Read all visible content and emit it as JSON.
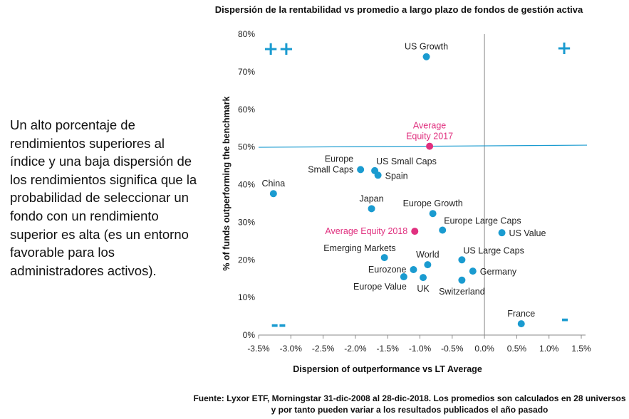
{
  "chart_data": {
    "type": "scatter",
    "title": "Dispersión de la rentabilidad vs promedio a largo plazo de fondos de gestión activa",
    "xlabel": "Dispersion of outperformance vs LT Average",
    "ylabel": "% of funds outperforming the benchmark",
    "xlim": [
      -3.5,
      1.5
    ],
    "ylim": [
      0,
      80
    ],
    "x_ticks": [
      -3.5,
      -3.0,
      -2.5,
      -2.0,
      -1.5,
      -1.0,
      -0.5,
      0.0,
      0.5,
      1.0,
      1.5
    ],
    "x_tick_labels": [
      "-3.5%",
      "-3.0%",
      "-2.5%",
      "-2.0%",
      "-1.5%",
      "-1.0%",
      "-0.5%",
      "0.0%",
      "0.5%",
      "1.0%",
      "1.5%"
    ],
    "y_ticks": [
      0,
      10,
      20,
      30,
      40,
      50,
      60,
      70,
      80
    ],
    "y_tick_labels": [
      "0%",
      "10%",
      "20%",
      "30%",
      "40%",
      "50%",
      "60%",
      "70%",
      "80%"
    ],
    "reference_line": {
      "label": "Average Equity 2017",
      "y": 50.2
    },
    "vertical_line_x": 0.0,
    "colors": {
      "points": "#1a9bd0",
      "highlight": "#e0307f",
      "lines": "#1a9bd0",
      "axis": "#888888"
    },
    "points": [
      {
        "name": "US Growth",
        "label": "US Growth",
        "x": -0.9,
        "y": 74,
        "anchor": "above"
      },
      {
        "name": "Average Equity 2017",
        "label": [
          "Average",
          "Equity 2017"
        ],
        "x": -0.85,
        "y": 50.2,
        "anchor": "above",
        "highlight": true
      },
      {
        "name": "Europe Small Caps",
        "label": [
          "Europe",
          "Small Caps"
        ],
        "x": -1.92,
        "y": 44,
        "anchor": "left"
      },
      {
        "name": "US Small Caps",
        "label": "US Small Caps",
        "x": -1.7,
        "y": 43.7,
        "anchor": "right-above"
      },
      {
        "name": "Spain",
        "label": "Spain",
        "x": -1.65,
        "y": 42.5,
        "anchor": "right"
      },
      {
        "name": "China",
        "label": "China",
        "x": -3.27,
        "y": 37.6,
        "anchor": "above"
      },
      {
        "name": "Japan",
        "label": "Japan",
        "x": -1.75,
        "y": 33.6,
        "anchor": "above"
      },
      {
        "name": "Europe Growth",
        "label": "Europe Growth",
        "x": -0.8,
        "y": 32.3,
        "anchor": "above"
      },
      {
        "name": "Europe Large Caps",
        "label": "Europe Large Caps",
        "x": -0.65,
        "y": 27.9,
        "anchor": "right-above"
      },
      {
        "name": "US Value",
        "label": "US Value",
        "x": 0.27,
        "y": 27.2,
        "anchor": "right"
      },
      {
        "name": "Average Equity 2018",
        "label": "Average Equity 2018",
        "x": -1.08,
        "y": 27.6,
        "anchor": "left",
        "highlight": true
      },
      {
        "name": "Emerging Markets",
        "label": "Emerging Markets",
        "x": -1.55,
        "y": 20.6,
        "anchor": "above-left"
      },
      {
        "name": "US Large Caps",
        "label": "US Large Caps",
        "x": -0.35,
        "y": 20.0,
        "anchor": "right-above"
      },
      {
        "name": "World",
        "label": "World",
        "x": -0.88,
        "y": 18.7,
        "anchor": "above"
      },
      {
        "name": "Eurozone",
        "label": "Eurozone",
        "x": -1.1,
        "y": 17.4,
        "anchor": "left"
      },
      {
        "name": "Germany",
        "label": "Germany",
        "x": -0.18,
        "y": 17.0,
        "anchor": "right"
      },
      {
        "name": "Europe Value",
        "label": "Europe Value",
        "x": -1.25,
        "y": 15.5,
        "anchor": "below-left"
      },
      {
        "name": "UK",
        "label": "UK",
        "x": -0.95,
        "y": 15.3,
        "anchor": "below"
      },
      {
        "name": "Switzerland",
        "label": "Switzerland",
        "x": -0.35,
        "y": 14.6,
        "anchor": "below"
      },
      {
        "name": "France",
        "label": "France",
        "x": 0.57,
        "y": 3.0,
        "anchor": "above"
      }
    ],
    "quadrant_labels": [
      {
        "name": "top-left",
        "text": "++",
        "position": "top-left"
      },
      {
        "name": "top-right",
        "text": "+",
        "position": "top-right"
      },
      {
        "name": "bottom-left",
        "text": "--",
        "position": "bottom-left"
      },
      {
        "name": "bottom-right",
        "text": "-",
        "position": "bottom-right"
      }
    ]
  },
  "side_text": "Un alto porcentaje de rendimientos superiores al índice y una baja dispersión de los rendimientos significa que la probabilidad de seleccionar un fondo con un rendimiento superior es alta (es un entorno favorable para los administradores activos).",
  "source_note": "Fuente: Lyxor ETF, Morningstar 31-dic-2008 al 28-dic-2018. Los promedios son calculados en 28 universos y por tanto pueden variar a los resultados publicados el año pasado"
}
